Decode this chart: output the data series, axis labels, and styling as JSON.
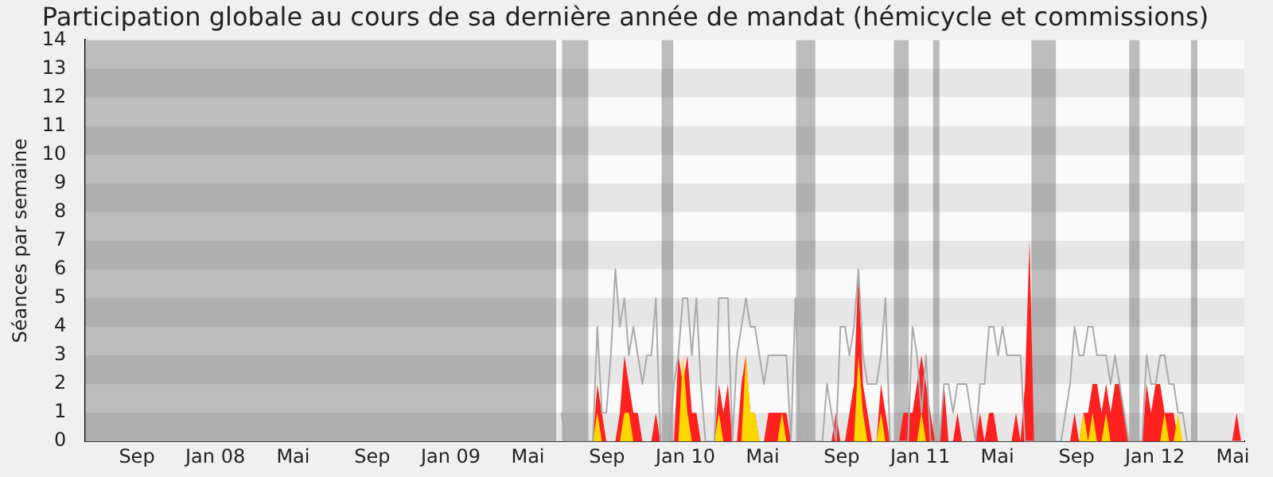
{
  "chart_data": {
    "type": "area",
    "title": "Participation globale au cours de sa dernière année de mandat (hémicycle et commissions)",
    "ylabel": "Séances par semaine",
    "x": [
      "2009-07-06",
      "2009-07-13",
      "2009-07-20",
      "2009-07-27",
      "2009-08-03",
      "2009-08-10",
      "2009-08-17",
      "2009-08-24",
      "2009-08-31",
      "2009-09-07",
      "2009-09-14",
      "2009-09-21",
      "2009-09-28",
      "2009-10-05",
      "2009-10-12",
      "2009-10-19",
      "2009-10-26",
      "2009-11-02",
      "2009-11-09",
      "2009-11-16",
      "2009-11-23",
      "2009-11-30",
      "2009-12-07",
      "2009-12-14",
      "2009-12-21",
      "2009-12-28",
      "2010-01-04",
      "2010-01-11",
      "2010-01-18",
      "2010-01-25",
      "2010-02-01",
      "2010-02-08",
      "2010-02-15",
      "2010-02-22",
      "2010-03-01",
      "2010-03-08",
      "2010-03-15",
      "2010-03-22",
      "2010-03-29",
      "2010-04-05",
      "2010-04-12",
      "2010-04-19",
      "2010-04-26",
      "2010-05-03",
      "2010-05-10",
      "2010-05-17",
      "2010-05-24",
      "2010-05-31",
      "2010-06-07",
      "2010-06-14",
      "2010-06-21",
      "2010-06-28",
      "2010-07-05",
      "2010-07-12",
      "2010-07-19",
      "2010-07-26",
      "2010-08-02",
      "2010-08-09",
      "2010-08-16",
      "2010-08-23",
      "2010-08-30",
      "2010-09-06",
      "2010-09-13",
      "2010-09-20",
      "2010-09-27",
      "2010-10-04",
      "2010-10-11",
      "2010-10-18",
      "2010-10-25",
      "2010-11-01",
      "2010-11-08",
      "2010-11-15",
      "2010-11-22",
      "2010-11-29",
      "2010-12-06",
      "2010-12-13",
      "2010-12-20",
      "2010-12-27",
      "2011-01-03",
      "2011-01-10",
      "2011-01-17",
      "2011-01-24",
      "2011-01-31",
      "2011-02-07",
      "2011-02-14",
      "2011-02-21",
      "2011-02-28",
      "2011-03-07",
      "2011-03-14",
      "2011-03-21",
      "2011-03-28",
      "2011-04-04",
      "2011-04-11",
      "2011-04-18",
      "2011-04-25",
      "2011-05-02",
      "2011-05-09",
      "2011-05-16",
      "2011-05-23",
      "2011-05-30",
      "2011-06-06",
      "2011-06-13",
      "2011-06-20",
      "2011-06-27",
      "2011-07-04",
      "2011-07-11",
      "2011-07-18",
      "2011-07-25",
      "2011-08-01",
      "2011-08-08",
      "2011-08-15",
      "2011-08-22",
      "2011-08-29",
      "2011-09-05",
      "2011-09-12",
      "2011-09-19",
      "2011-09-26",
      "2011-10-03",
      "2011-10-10",
      "2011-10-17",
      "2011-10-24",
      "2011-10-31",
      "2011-11-07",
      "2011-11-14",
      "2011-11-21",
      "2011-11-28",
      "2011-12-05",
      "2011-12-12",
      "2011-12-19",
      "2011-12-26",
      "2012-01-02",
      "2012-01-09",
      "2012-01-16",
      "2012-01-23",
      "2012-01-30",
      "2012-02-06",
      "2012-02-13",
      "2012-02-20",
      "2012-02-27",
      "2012-03-05",
      "2012-03-12",
      "2012-03-19",
      "2012-03-26",
      "2012-04-02",
      "2012-04-09",
      "2012-04-16",
      "2012-04-23",
      "2012-04-30",
      "2012-05-07",
      "2012-05-14",
      "2012-05-21",
      "2012-05-28"
    ],
    "series": [
      {
        "type": "line",
        "color": "#aaaaaa",
        "values": [
          1,
          0,
          0,
          0,
          0,
          0,
          0,
          0,
          4,
          1,
          1,
          3,
          6,
          4,
          5,
          3,
          4,
          3,
          2,
          3,
          3,
          5,
          0,
          0,
          0,
          2,
          3,
          5,
          5,
          3,
          5,
          2,
          0,
          0,
          0,
          5,
          5,
          5,
          0,
          3,
          4,
          5,
          4,
          4,
          3,
          2,
          3,
          3,
          3,
          3,
          3,
          0,
          5,
          0,
          0,
          0,
          0,
          0,
          0,
          2,
          1,
          0,
          4,
          4,
          3,
          4,
          6,
          3,
          2,
          2,
          2,
          3,
          5,
          0,
          0,
          0,
          0,
          0,
          4,
          3,
          1,
          3,
          0,
          0,
          0,
          2,
          2,
          1,
          2,
          2,
          2,
          1,
          0,
          2,
          2,
          4,
          4,
          3,
          4,
          3,
          3,
          3,
          3,
          0,
          0,
          0,
          0,
          0,
          0,
          0,
          0,
          0,
          1,
          2,
          4,
          3,
          3,
          4,
          4,
          3,
          3,
          3,
          2,
          3,
          2,
          1,
          0,
          0,
          0,
          0,
          3,
          2,
          2,
          3,
          3,
          2,
          2,
          1,
          1,
          0,
          0,
          0,
          0,
          0,
          0,
          0,
          0,
          0,
          0,
          0,
          0,
          0
        ]
      },
      {
        "type": "area",
        "color": "#ff2020",
        "values": [
          0,
          0,
          0,
          0,
          0,
          0,
          0,
          0,
          2,
          1,
          0,
          0,
          0,
          1,
          3,
          2,
          1,
          1,
          0,
          0,
          0,
          1,
          0,
          0,
          0,
          0,
          3,
          2,
          3,
          1,
          1,
          0,
          0,
          0,
          0,
          2,
          1,
          2,
          0,
          0,
          2,
          3,
          1,
          1,
          0,
          0,
          1,
          1,
          1,
          1,
          1,
          0,
          0,
          0,
          0,
          0,
          0,
          0,
          0,
          0,
          0,
          1,
          0,
          0,
          1,
          2,
          6,
          2,
          1,
          0,
          0,
          2,
          1,
          0,
          0,
          0,
          1,
          1,
          1,
          2,
          3,
          2,
          1,
          0,
          0,
          2,
          0,
          0,
          1,
          0,
          0,
          0,
          0,
          1,
          0,
          1,
          1,
          0,
          0,
          0,
          0,
          1,
          0,
          2,
          7,
          0,
          0,
          0,
          0,
          0,
          0,
          0,
          0,
          0,
          1,
          0,
          1,
          1,
          2,
          2,
          1,
          2,
          1,
          2,
          2,
          1,
          0,
          0,
          0,
          0,
          2,
          1,
          2,
          2,
          1,
          1,
          1,
          0,
          0,
          0,
          0,
          0,
          0,
          0,
          0,
          0,
          0,
          0,
          0,
          0,
          1,
          0
        ]
      },
      {
        "type": "area",
        "color": "#ffd700",
        "values": [
          0,
          0,
          0,
          0,
          0,
          0,
          0,
          0,
          1,
          0,
          0,
          0,
          0,
          0,
          1,
          1,
          0,
          0,
          0,
          0,
          0,
          0,
          0,
          0,
          0,
          0,
          0,
          3,
          1,
          0,
          0,
          0,
          0,
          0,
          0,
          1,
          0,
          0,
          0,
          0,
          0,
          3,
          1,
          1,
          0,
          0,
          0,
          0,
          0,
          1,
          0,
          0,
          0,
          0,
          0,
          0,
          0,
          0,
          0,
          0,
          0,
          0,
          0,
          0,
          0,
          0,
          3,
          1,
          0,
          0,
          0,
          1,
          0,
          0,
          0,
          0,
          0,
          0,
          0,
          0,
          1,
          0,
          0,
          0,
          0,
          0,
          0,
          0,
          0,
          0,
          0,
          0,
          0,
          0,
          0,
          0,
          0,
          0,
          0,
          0,
          0,
          0,
          0,
          0,
          0,
          0,
          0,
          0,
          0,
          0,
          0,
          0,
          0,
          0,
          0,
          0,
          1,
          0,
          1,
          0,
          0,
          1,
          0,
          0,
          0,
          0,
          0,
          0,
          0,
          0,
          0,
          0,
          0,
          0,
          1,
          0,
          0,
          1,
          0,
          0,
          0,
          0,
          0,
          0,
          0,
          0,
          0,
          0,
          0,
          0,
          0,
          0
        ]
      }
    ],
    "xlim": [
      "2007-06-27",
      "2012-06-02"
    ],
    "xticks": [
      {
        "value": "2007-09-15",
        "label": "Sep"
      },
      {
        "value": "2008-01-15",
        "label": "Jan 08"
      },
      {
        "value": "2008-05-15",
        "label": "Mai"
      },
      {
        "value": "2008-09-15",
        "label": "Sep"
      },
      {
        "value": "2009-01-15",
        "label": "Jan 09"
      },
      {
        "value": "2009-05-15",
        "label": "Mai"
      },
      {
        "value": "2009-09-15",
        "label": "Sep"
      },
      {
        "value": "2010-01-15",
        "label": "Jan 10"
      },
      {
        "value": "2010-05-15",
        "label": "Mai"
      },
      {
        "value": "2010-09-15",
        "label": "Sep"
      },
      {
        "value": "2011-01-15",
        "label": "Jan 11"
      },
      {
        "value": "2011-05-15",
        "label": "Mai"
      },
      {
        "value": "2011-09-15",
        "label": "Sep"
      },
      {
        "value": "2012-01-15",
        "label": "Jan 12"
      },
      {
        "value": "2012-05-15",
        "label": "Mai"
      }
    ],
    "ylim": [
      0,
      14
    ],
    "yticks": [
      0,
      1,
      2,
      3,
      4,
      5,
      6,
      7,
      8,
      9,
      10,
      11,
      12,
      13,
      14
    ],
    "bands": [
      {
        "axis": "x",
        "from": "2007-06-27",
        "to": "2009-06-28",
        "color": "#323232"
      },
      {
        "axis": "x",
        "from": "2009-07-07",
        "to": "2009-08-17",
        "color": "#323232"
      },
      {
        "axis": "x",
        "from": "2009-12-09",
        "to": "2009-12-27",
        "color": "#323232"
      },
      {
        "axis": "x",
        "from": "2010-07-06",
        "to": "2010-08-05",
        "color": "#323232"
      },
      {
        "axis": "x",
        "from": "2010-12-05",
        "to": "2010-12-28",
        "color": "#323232"
      },
      {
        "axis": "x",
        "from": "2011-02-04",
        "to": "2011-02-14",
        "color": "#323232"
      },
      {
        "axis": "x",
        "from": "2011-07-07",
        "to": "2011-08-14",
        "color": "#323232"
      },
      {
        "axis": "x",
        "from": "2011-12-06",
        "to": "2011-12-22",
        "color": "#323232"
      },
      {
        "axis": "x",
        "from": "2012-03-11",
        "to": "2012-03-21",
        "color": "#323232"
      }
    ]
  }
}
